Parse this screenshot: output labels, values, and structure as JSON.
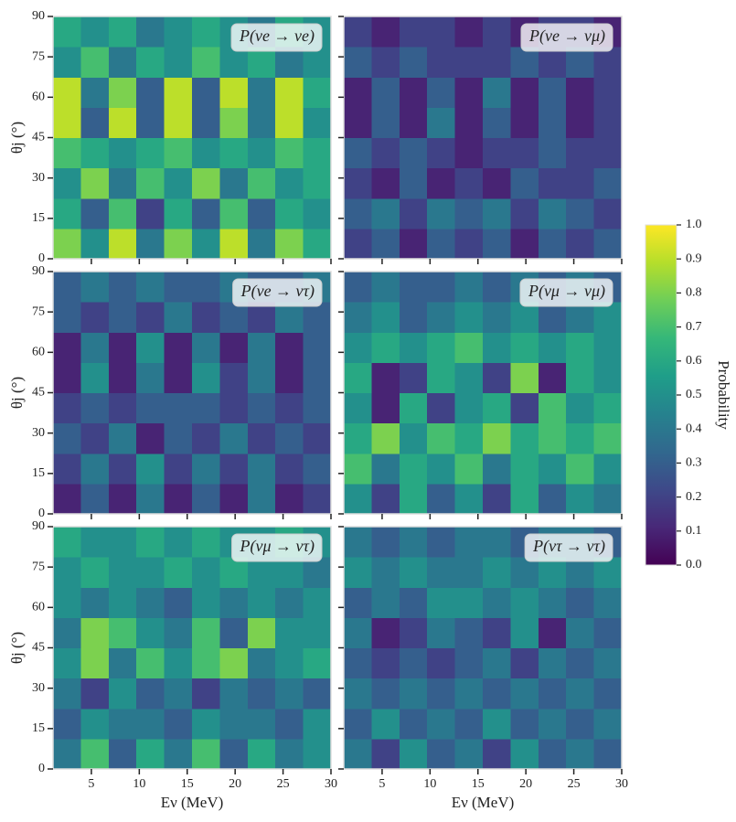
{
  "chart_data": [
    {
      "type": "heatmap",
      "title": "P(νe → νe)",
      "ylabel": "θj (°)",
      "xlim": [
        1,
        30
      ],
      "ylim": [
        0,
        90
      ],
      "xticks": [
        5,
        10,
        15,
        20,
        25,
        30
      ],
      "yticks": [
        0,
        15,
        30,
        45,
        60,
        75,
        90
      ],
      "z": [
        [
          0.8,
          0.5,
          0.9,
          0.4,
          0.8,
          0.5,
          0.9,
          0.4,
          0.8,
          0.6
        ],
        [
          0.6,
          0.3,
          0.7,
          0.2,
          0.6,
          0.3,
          0.7,
          0.3,
          0.6,
          0.5
        ],
        [
          0.5,
          0.8,
          0.4,
          0.7,
          0.5,
          0.8,
          0.4,
          0.7,
          0.5,
          0.6
        ],
        [
          0.7,
          0.6,
          0.5,
          0.6,
          0.7,
          0.5,
          0.6,
          0.5,
          0.7,
          0.6
        ],
        [
          0.9,
          0.3,
          0.9,
          0.3,
          0.9,
          0.3,
          0.8,
          0.4,
          0.9,
          0.5
        ],
        [
          0.9,
          0.4,
          0.8,
          0.3,
          0.9,
          0.3,
          0.9,
          0.4,
          0.9,
          0.6
        ],
        [
          0.5,
          0.7,
          0.4,
          0.6,
          0.5,
          0.7,
          0.5,
          0.6,
          0.4,
          0.5
        ],
        [
          0.6,
          0.5,
          0.6,
          0.4,
          0.5,
          0.6,
          0.5,
          0.4,
          0.6,
          0.5
        ]
      ]
    },
    {
      "type": "heatmap",
      "title": "P(νe → νμ)",
      "xlim": [
        1,
        30
      ],
      "ylim": [
        0,
        90
      ],
      "xticks": [
        5,
        10,
        15,
        20,
        25,
        30
      ],
      "yticks": [
        0,
        15,
        30,
        45,
        60,
        75,
        90
      ],
      "z": [
        [
          0.2,
          0.3,
          0.1,
          0.3,
          0.2,
          0.3,
          0.1,
          0.3,
          0.2,
          0.3
        ],
        [
          0.3,
          0.4,
          0.2,
          0.4,
          0.3,
          0.4,
          0.2,
          0.4,
          0.3,
          0.2
        ],
        [
          0.2,
          0.1,
          0.3,
          0.1,
          0.2,
          0.1,
          0.3,
          0.2,
          0.2,
          0.3
        ],
        [
          0.3,
          0.2,
          0.3,
          0.2,
          0.1,
          0.2,
          0.2,
          0.3,
          0.2,
          0.2
        ],
        [
          0.1,
          0.3,
          0.1,
          0.4,
          0.1,
          0.3,
          0.1,
          0.3,
          0.1,
          0.2
        ],
        [
          0.1,
          0.3,
          0.1,
          0.3,
          0.1,
          0.4,
          0.1,
          0.3,
          0.1,
          0.2
        ],
        [
          0.3,
          0.2,
          0.3,
          0.2,
          0.2,
          0.2,
          0.3,
          0.2,
          0.3,
          0.2
        ],
        [
          0.2,
          0.1,
          0.2,
          0.2,
          0.1,
          0.2,
          0.1,
          0.2,
          0.2,
          0.1
        ]
      ]
    },
    {
      "type": "heatmap",
      "title": "P(νe → ντ)",
      "ylabel": "θj (°)",
      "xlim": [
        1,
        30
      ],
      "ylim": [
        0,
        90
      ],
      "xticks": [
        5,
        10,
        15,
        20,
        25,
        30
      ],
      "yticks": [
        0,
        15,
        30,
        45,
        60,
        75,
        90
      ],
      "z": [
        [
          0.1,
          0.3,
          0.1,
          0.4,
          0.1,
          0.3,
          0.1,
          0.4,
          0.1,
          0.2
        ],
        [
          0.2,
          0.4,
          0.2,
          0.5,
          0.2,
          0.4,
          0.2,
          0.4,
          0.2,
          0.3
        ],
        [
          0.3,
          0.2,
          0.4,
          0.1,
          0.3,
          0.2,
          0.4,
          0.2,
          0.3,
          0.2
        ],
        [
          0.2,
          0.3,
          0.2,
          0.3,
          0.3,
          0.3,
          0.2,
          0.3,
          0.2,
          0.3
        ],
        [
          0.1,
          0.5,
          0.1,
          0.4,
          0.1,
          0.5,
          0.2,
          0.4,
          0.1,
          0.3
        ],
        [
          0.1,
          0.4,
          0.1,
          0.5,
          0.1,
          0.4,
          0.1,
          0.4,
          0.1,
          0.3
        ],
        [
          0.3,
          0.2,
          0.3,
          0.2,
          0.4,
          0.2,
          0.3,
          0.2,
          0.4,
          0.3
        ],
        [
          0.3,
          0.4,
          0.3,
          0.4,
          0.3,
          0.3,
          0.4,
          0.3,
          0.3,
          0.4
        ]
      ]
    },
    {
      "type": "heatmap",
      "title": "P(νμ → νμ)",
      "xlim": [
        1,
        30
      ],
      "ylim": [
        0,
        90
      ],
      "xticks": [
        5,
        10,
        15,
        20,
        25,
        30
      ],
      "yticks": [
        0,
        15,
        30,
        45,
        60,
        75,
        90
      ],
      "z": [
        [
          0.5,
          0.2,
          0.6,
          0.3,
          0.5,
          0.2,
          0.6,
          0.3,
          0.5,
          0.4
        ],
        [
          0.7,
          0.4,
          0.6,
          0.5,
          0.7,
          0.4,
          0.6,
          0.5,
          0.7,
          0.5
        ],
        [
          0.6,
          0.8,
          0.5,
          0.7,
          0.6,
          0.8,
          0.6,
          0.7,
          0.6,
          0.7
        ],
        [
          0.5,
          0.1,
          0.6,
          0.2,
          0.5,
          0.6,
          0.2,
          0.7,
          0.5,
          0.6
        ],
        [
          0.6,
          0.1,
          0.2,
          0.6,
          0.5,
          0.2,
          0.8,
          0.1,
          0.6,
          0.5
        ],
        [
          0.5,
          0.6,
          0.5,
          0.6,
          0.7,
          0.5,
          0.6,
          0.5,
          0.6,
          0.5
        ],
        [
          0.4,
          0.5,
          0.3,
          0.4,
          0.5,
          0.4,
          0.5,
          0.3,
          0.4,
          0.5
        ],
        [
          0.3,
          0.4,
          0.3,
          0.3,
          0.4,
          0.3,
          0.4,
          0.3,
          0.4,
          0.3
        ]
      ]
    },
    {
      "type": "heatmap",
      "title": "P(νμ → ντ)",
      "ylabel": "θj (°)",
      "xlabel": "Eν (MeV)",
      "xlim": [
        1,
        30
      ],
      "ylim": [
        0,
        90
      ],
      "xticks": [
        5,
        10,
        15,
        20,
        25,
        30
      ],
      "yticks": [
        0,
        15,
        30,
        45,
        60,
        75,
        90
      ],
      "z": [
        [
          0.4,
          0.7,
          0.3,
          0.6,
          0.4,
          0.7,
          0.3,
          0.6,
          0.4,
          0.5
        ],
        [
          0.3,
          0.5,
          0.4,
          0.4,
          0.3,
          0.5,
          0.4,
          0.4,
          0.3,
          0.5
        ],
        [
          0.4,
          0.2,
          0.5,
          0.3,
          0.4,
          0.2,
          0.4,
          0.3,
          0.4,
          0.3
        ],
        [
          0.5,
          0.8,
          0.4,
          0.7,
          0.5,
          0.7,
          0.8,
          0.4,
          0.5,
          0.6
        ],
        [
          0.4,
          0.8,
          0.7,
          0.5,
          0.4,
          0.7,
          0.3,
          0.8,
          0.5,
          0.5
        ],
        [
          0.5,
          0.4,
          0.5,
          0.4,
          0.3,
          0.5,
          0.4,
          0.5,
          0.4,
          0.5
        ],
        [
          0.5,
          0.6,
          0.5,
          0.5,
          0.6,
          0.5,
          0.6,
          0.5,
          0.5,
          0.4
        ],
        [
          0.6,
          0.5,
          0.5,
          0.6,
          0.5,
          0.6,
          0.5,
          0.5,
          0.6,
          0.5
        ]
      ]
    },
    {
      "type": "heatmap",
      "title": "P(ντ → ντ)",
      "xlabel": "Eν (MeV)",
      "xlim": [
        1,
        30
      ],
      "ylim": [
        0,
        90
      ],
      "xticks": [
        5,
        10,
        15,
        20,
        25,
        30
      ],
      "yticks": [
        0,
        15,
        30,
        45,
        60,
        75,
        90
      ],
      "z": [
        [
          0.4,
          0.2,
          0.5,
          0.3,
          0.4,
          0.2,
          0.5,
          0.3,
          0.4,
          0.3
        ],
        [
          0.3,
          0.5,
          0.3,
          0.4,
          0.3,
          0.5,
          0.3,
          0.4,
          0.3,
          0.4
        ],
        [
          0.4,
          0.3,
          0.4,
          0.3,
          0.4,
          0.3,
          0.4,
          0.3,
          0.4,
          0.3
        ],
        [
          0.3,
          0.2,
          0.3,
          0.2,
          0.3,
          0.4,
          0.2,
          0.4,
          0.3,
          0.4
        ],
        [
          0.4,
          0.1,
          0.2,
          0.4,
          0.3,
          0.2,
          0.5,
          0.1,
          0.4,
          0.3
        ],
        [
          0.3,
          0.4,
          0.3,
          0.5,
          0.5,
          0.4,
          0.5,
          0.4,
          0.3,
          0.4
        ],
        [
          0.5,
          0.4,
          0.5,
          0.4,
          0.4,
          0.5,
          0.4,
          0.5,
          0.4,
          0.5
        ],
        [
          0.4,
          0.3,
          0.4,
          0.3,
          0.4,
          0.4,
          0.3,
          0.4,
          0.4,
          0.3
        ]
      ]
    }
  ],
  "colorbar": {
    "label": "Probability",
    "colormap": "viridis",
    "lim": [
      0,
      1
    ],
    "ticks": [
      {
        "value": 0,
        "label": "0.0"
      },
      0.1,
      0.2,
      0.3,
      0.4,
      0.5,
      0.6,
      0.7,
      0.8,
      0.9,
      {
        "value": 1,
        "label": "1.0"
      }
    ]
  }
}
